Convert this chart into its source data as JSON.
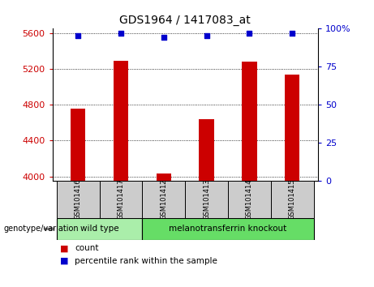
{
  "title": "GDS1964 / 1417083_at",
  "samples": [
    "GSM101416",
    "GSM101417",
    "GSM101412",
    "GSM101413",
    "GSM101414",
    "GSM101415"
  ],
  "counts": [
    4760,
    5290,
    4035,
    4640,
    5285,
    5140
  ],
  "percentile_ranks": [
    95.5,
    97,
    94.5,
    95.5,
    97,
    97
  ],
  "ylim_left": [
    3950,
    5650
  ],
  "ylim_right": [
    0,
    100
  ],
  "yticks_left": [
    4000,
    4400,
    4800,
    5200,
    5600
  ],
  "yticks_right": [
    0,
    25,
    50,
    75,
    100
  ],
  "bar_color": "#cc0000",
  "dot_color": "#0000cc",
  "bar_width": 0.35,
  "groups": [
    {
      "label": "wild type",
      "indices": [
        0,
        1
      ],
      "color": "#aaeeaa"
    },
    {
      "label": "melanotransferrin knockout",
      "indices": [
        2,
        3,
        4,
        5
      ],
      "color": "#66dd66"
    }
  ],
  "genotype_label": "genotype/variation",
  "legend_count_label": "count",
  "legend_percentile_label": "percentile rank within the sample",
  "left_tick_color": "#cc0000",
  "right_tick_color": "#0000cc",
  "sample_box_color": "#cccccc",
  "right_tick_labels": [
    "0",
    "25",
    "50",
    "75",
    "100%"
  ]
}
